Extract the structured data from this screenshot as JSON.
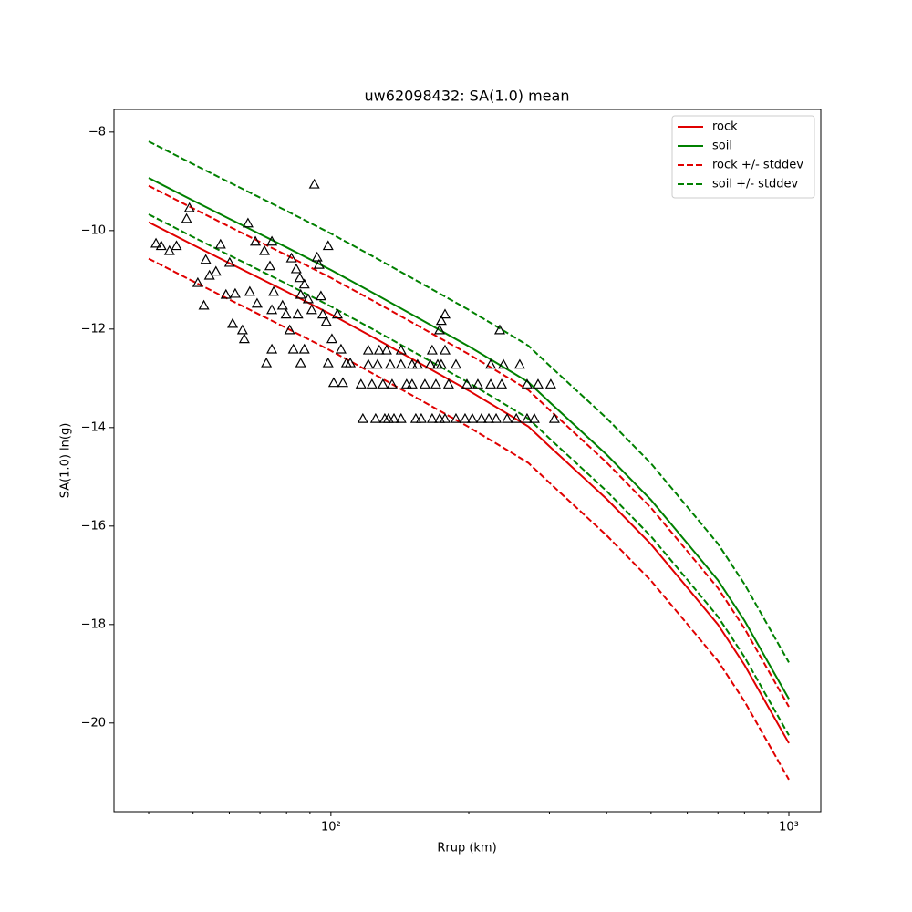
{
  "chart_data": {
    "type": "line",
    "title": "uw62098432: SA(1.0) mean",
    "x_label": "Rrup (km)",
    "y_label": "SA(1.0) ln(g)",
    "x_scale": "log",
    "xlim": [
      33.6,
      1174
    ],
    "ylim": [
      -21.8,
      -7.54
    ],
    "xticks": [
      {
        "value": 100,
        "label": "10²"
      },
      {
        "value": 1000,
        "label": "10³"
      }
    ],
    "xminorticks": [
      40,
      50,
      60,
      70,
      80,
      90,
      200,
      300,
      400,
      500,
      600,
      700,
      800,
      900
    ],
    "yticks": [
      {
        "value": -20,
        "label": "−20"
      },
      {
        "value": -18,
        "label": "−18"
      },
      {
        "value": -16,
        "label": "−16"
      },
      {
        "value": -14,
        "label": "−14"
      },
      {
        "value": -12,
        "label": "−12"
      },
      {
        "value": -10,
        "label": "−10"
      },
      {
        "value": -8,
        "label": "−8"
      }
    ],
    "legend": "upper right",
    "x": [
      40,
      50,
      60,
      70,
      80,
      100,
      125,
      150,
      200,
      250,
      270,
      300,
      400,
      500,
      600,
      700,
      800,
      900,
      1000
    ],
    "series": [
      {
        "name": "rock",
        "color": "#e00000",
        "dashed": false,
        "values": [
          -9.83,
          -10.29,
          -10.66,
          -10.97,
          -11.24,
          -11.7,
          -12.19,
          -12.6,
          -13.25,
          -13.79,
          -13.98,
          -14.38,
          -15.45,
          -16.37,
          -17.25,
          -18.0,
          -18.82,
          -19.66,
          -20.41
        ]
      },
      {
        "name": "soil",
        "color": "#008000",
        "dashed": false,
        "values": [
          -8.93,
          -9.39,
          -9.76,
          -10.07,
          -10.34,
          -10.8,
          -11.29,
          -11.7,
          -12.35,
          -12.89,
          -13.08,
          -13.48,
          -14.55,
          -15.47,
          -16.35,
          -17.1,
          -17.92,
          -18.76,
          -19.51
        ]
      },
      {
        "name": "rock +/- stddev",
        "color": "#e00000",
        "dashed": true,
        "upper": [
          -9.09,
          -9.55,
          -9.92,
          -10.23,
          -10.5,
          -10.96,
          -11.45,
          -11.86,
          -12.51,
          -13.05,
          -13.24,
          -13.64,
          -14.71,
          -15.63,
          -16.51,
          -17.26,
          -18.08,
          -18.92,
          -19.67
        ],
        "lower": [
          -10.57,
          -11.03,
          -11.4,
          -11.71,
          -11.98,
          -12.44,
          -12.93,
          -13.34,
          -13.99,
          -14.53,
          -14.72,
          -15.12,
          -16.19,
          -17.11,
          -17.99,
          -18.74,
          -19.56,
          -20.4,
          -21.15
        ]
      },
      {
        "name": "soil +/- stddev",
        "color": "#008000",
        "dashed": true,
        "upper": [
          -8.19,
          -8.65,
          -9.02,
          -9.33,
          -9.6,
          -10.06,
          -10.55,
          -10.96,
          -11.61,
          -12.15,
          -12.34,
          -12.74,
          -13.81,
          -14.73,
          -15.61,
          -16.36,
          -17.18,
          -18.02,
          -18.77
        ],
        "lower": [
          -9.67,
          -10.13,
          -10.5,
          -10.81,
          -11.08,
          -11.54,
          -12.03,
          -12.44,
          -13.09,
          -13.63,
          -13.82,
          -14.22,
          -15.29,
          -16.21,
          -17.09,
          -17.84,
          -18.66,
          -19.5,
          -20.25
        ]
      }
    ],
    "points": {
      "color": "#000000",
      "x": [
        41.5,
        42.6,
        44.4,
        46.0,
        48.4,
        49.1,
        51.2,
        52.8,
        53.3,
        54.3,
        56.1,
        57.4,
        59.0,
        60.1,
        61.0,
        61.8,
        64.1,
        64.7,
        65.9,
        66.5,
        68.4,
        69.0,
        71.6,
        72.3,
        73.6,
        74.3,
        74.3,
        75.0,
        74.3,
        78.4,
        79.8,
        81.3,
        82.0,
        82.8,
        84.0,
        84.7,
        85.5,
        85.9,
        87.5,
        85.9,
        87.5,
        89.2,
        90.8,
        92.0,
        93.3,
        94.2,
        95.1,
        96.0,
        97.7,
        98.6,
        98.6,
        100.5,
        101.4,
        103.3,
        105.2,
        106.2,
        108.1,
        110.2,
        117.4,
        125.2,
        131.1,
        133.5,
        137.3,
        142.3,
        153.2,
        157.5,
        166.4,
        172.7,
        177.5,
        187.5,
        196.3,
        203.6,
        213.2,
        221.2,
        229.5,
        242.5,
        254.0,
        268.1,
        278.1,
        307.6,
        116.3,
        122.9,
        129.9,
        136.0,
        146.3,
        150.4,
        160.4,
        169.5,
        180.7,
        198.1,
        209.3,
        223.3,
        235.9,
        268.1,
        283.3,
        302.0,
        120.7,
        126.4,
        134.8,
        142.3,
        150.4,
        154.6,
        164.9,
        171.1,
        174.2,
        187.5,
        223.3,
        238.1,
        120.7,
        127.5,
        132.3,
        142.3,
        166.4,
        177.5,
        177.5,
        174.2,
        172.7,
        233.7,
        258.4
      ],
      "y": [
        -10.26,
        -10.31,
        -10.41,
        -10.31,
        -9.76,
        -9.54,
        -11.06,
        -11.52,
        -10.59,
        -10.91,
        -10.83,
        -10.28,
        -11.3,
        -10.65,
        -11.89,
        -11.28,
        -12.02,
        -12.2,
        -9.85,
        -11.24,
        -10.22,
        -11.48,
        -10.41,
        -12.69,
        -10.72,
        -10.22,
        -12.41,
        -11.24,
        -11.61,
        -11.52,
        -11.7,
        -12.02,
        -10.56,
        -12.41,
        -10.78,
        -11.7,
        -10.96,
        -11.3,
        -11.09,
        -12.69,
        -12.41,
        -11.39,
        -11.61,
        -9.06,
        -10.54,
        -10.69,
        -11.33,
        -11.7,
        -11.85,
        -10.31,
        -12.69,
        -12.2,
        -13.09,
        -11.7,
        -12.41,
        -13.09,
        -12.69,
        -12.69,
        -13.82,
        -13.82,
        -13.82,
        -13.82,
        -13.82,
        -13.82,
        -13.82,
        -13.82,
        -13.82,
        -13.82,
        -13.82,
        -13.82,
        -13.82,
        -13.82,
        -13.82,
        -13.82,
        -13.82,
        -13.82,
        -13.82,
        -13.82,
        -13.82,
        -13.82,
        -13.12,
        -13.12,
        -13.12,
        -13.12,
        -13.12,
        -13.12,
        -13.12,
        -13.12,
        -13.12,
        -13.12,
        -13.12,
        -13.12,
        -13.12,
        -13.12,
        -13.12,
        -13.12,
        -12.72,
        -12.72,
        -12.72,
        -12.72,
        -12.72,
        -12.72,
        -12.72,
        -12.72,
        -12.72,
        -12.72,
        -12.72,
        -12.72,
        -12.43,
        -12.43,
        -12.43,
        -12.43,
        -12.43,
        -12.43,
        -11.7,
        -11.83,
        -12.02,
        -12.02,
        -12.72
      ]
    }
  }
}
